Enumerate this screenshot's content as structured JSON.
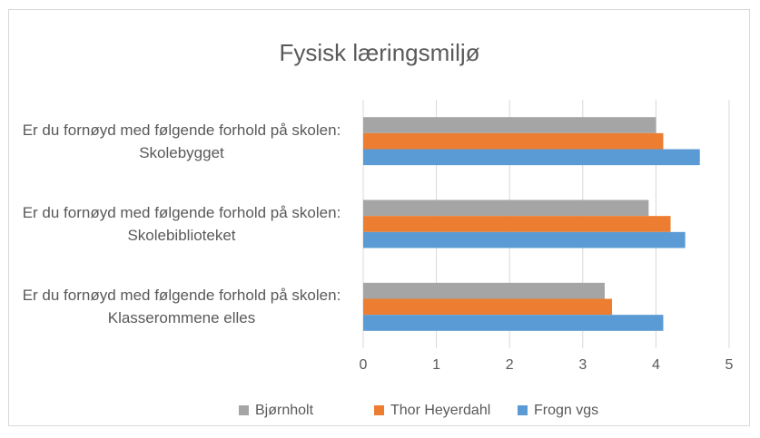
{
  "chart_data": {
    "type": "hbar",
    "title": "Fysisk læringsmiljø",
    "categories": [
      "Er du fornøyd med følgende forhold på skolen: Skolebygget",
      "Er du fornøyd med følgende forhold på skolen: Skolebiblioteket",
      "Er du fornøyd med følgende forhold på skolen: Klasserommene elles"
    ],
    "series": [
      {
        "name": "Bjørnholt",
        "color": "#a5a5a5",
        "values": [
          4.0,
          3.9,
          3.3
        ]
      },
      {
        "name": "Thor Heyerdahl",
        "color": "#ed7d31",
        "values": [
          4.1,
          4.2,
          3.4
        ]
      },
      {
        "name": "Frogn vgs",
        "color": "#5b9bd5",
        "values": [
          4.6,
          4.4,
          4.1
        ]
      }
    ],
    "xlim": [
      0,
      5
    ],
    "xticks": [
      0,
      1,
      2,
      3,
      4,
      5
    ],
    "grid": true,
    "legend": "bottom"
  }
}
